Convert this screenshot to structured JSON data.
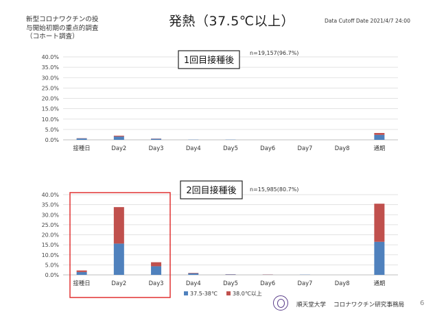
{
  "header": {
    "subtitle_lines": [
      "新型コロナワクチンの投",
      "与開始初期の重点的調査",
      "（コホート調査）"
    ],
    "title": "発熱（37.5℃以上）",
    "cutoff": "Data Cutoff Date 2021/4/7 24:00"
  },
  "footer": {
    "university": "順天堂大学",
    "office": "コロナワクチン研究事務局",
    "page_number": "6"
  },
  "colors": {
    "low_fever": "#4f81bd",
    "high_fever": "#c0504d",
    "highlight_box": "#e03030",
    "grid": "#d9d9d9"
  },
  "chart_data": [
    {
      "type": "bar",
      "stacked": true,
      "title": "1回目接種後",
      "annotation": "n=19,157(96.7%)",
      "categories": [
        "接種日",
        "Day2",
        "Day3",
        "Day4",
        "Day5",
        "Day6",
        "Day7",
        "Day8",
        "通期"
      ],
      "series": [
        {
          "name": "37.5-38℃",
          "values": [
            0.7,
            1.6,
            0.5,
            0.1,
            0.1,
            0.0,
            0.0,
            0.0,
            2.4
          ]
        },
        {
          "name": "38.0℃以上",
          "values": [
            0.1,
            0.4,
            0.1,
            0.0,
            0.0,
            0.0,
            0.0,
            0.0,
            0.9
          ]
        }
      ],
      "y_ticks": [
        "40.0%",
        "35.0%",
        "30.0%",
        "25.0%",
        "20.0%",
        "15.0%",
        "10.0%",
        "5.0%",
        "0.0%"
      ],
      "ylim": [
        0,
        40
      ],
      "y_unit": "%",
      "grid": true
    },
    {
      "type": "bar",
      "stacked": true,
      "title": "2回目接種後",
      "annotation": "n=15,985(80.7%)",
      "categories": [
        "接種日",
        "Day2",
        "Day3",
        "Day4",
        "Day5",
        "Day6",
        "Day7",
        "Day8",
        "通期"
      ],
      "series": [
        {
          "name": "37.5-38℃",
          "values": [
            1.4,
            15.6,
            4.3,
            0.8,
            0.2,
            0.1,
            0.1,
            0.0,
            16.5
          ]
        },
        {
          "name": "38.0℃以上",
          "values": [
            0.8,
            18.2,
            2.0,
            0.2,
            0.1,
            0.1,
            0.0,
            0.0,
            19.0
          ]
        }
      ],
      "y_ticks": [
        "40.0%",
        "35.0%",
        "30.0%",
        "25.0%",
        "20.0%",
        "15.0%",
        "10.0%",
        "5.0%",
        "0.0%"
      ],
      "ylim": [
        0,
        40
      ],
      "y_unit": "%",
      "grid": true,
      "legend": "bottom",
      "highlight": {
        "categories": [
          "接種日",
          "Day2",
          "Day3"
        ]
      }
    }
  ]
}
